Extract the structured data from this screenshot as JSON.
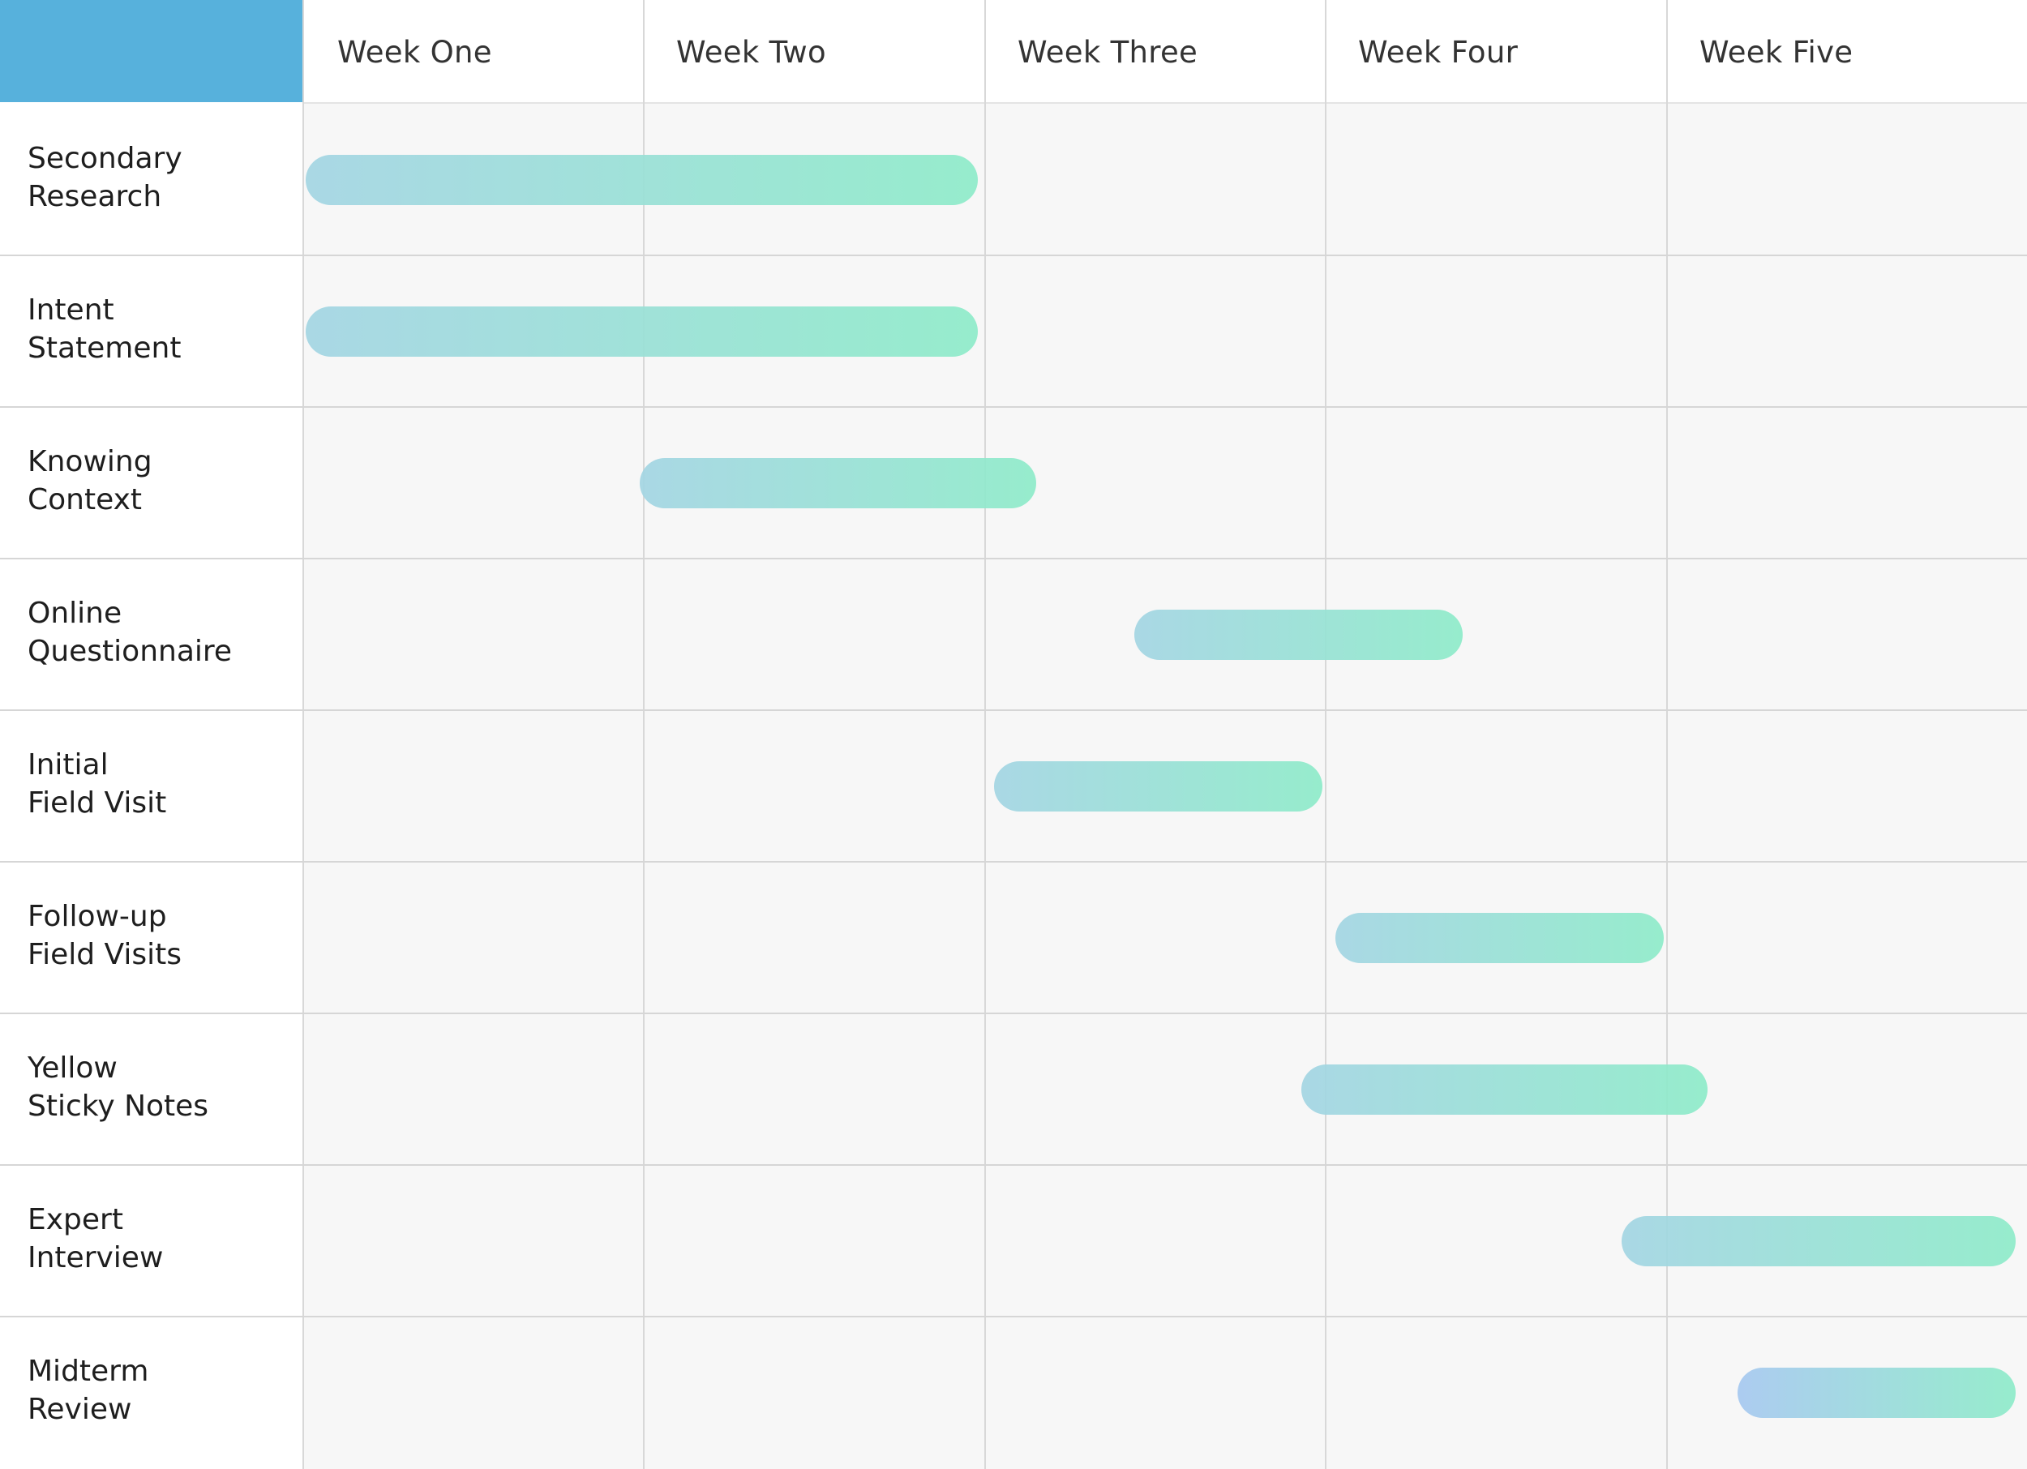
{
  "colors": {
    "corner": "#57b1dc",
    "bar_start": "#a3d5e3",
    "bar_end": "#8eebc9",
    "bar_start_alt": "#a6c8f0"
  },
  "chart_data": {
    "type": "gantt",
    "title": "",
    "columns": [
      "Week One",
      "Week Two",
      "Week Three",
      "Week Four",
      "Week Five"
    ],
    "x_unit": "weeks",
    "xlim": [
      0,
      5
    ],
    "grid": true,
    "legend": "none",
    "tasks": [
      {
        "label": "Secondary\nResearch",
        "start": 0.0,
        "end": 1.98
      },
      {
        "label": "Intent\nStatement",
        "start": 0.0,
        "end": 1.98
      },
      {
        "label": "Knowing\nContext",
        "start": 0.98,
        "end": 2.15
      },
      {
        "label": "Online\nQuestionnaire",
        "start": 2.43,
        "end": 3.4
      },
      {
        "label": "Initial\nField Visit",
        "start": 2.02,
        "end": 2.99
      },
      {
        "label": "Follow-up\nField Visits",
        "start": 3.02,
        "end": 3.99
      },
      {
        "label": "Yellow\nSticky Notes",
        "start": 2.92,
        "end": 4.12
      },
      {
        "label": "Expert\nInterview",
        "start": 3.86,
        "end": 5.03
      },
      {
        "label": "Midterm\nReview",
        "start": 4.2,
        "end": 5.03,
        "color": "alt"
      }
    ]
  }
}
